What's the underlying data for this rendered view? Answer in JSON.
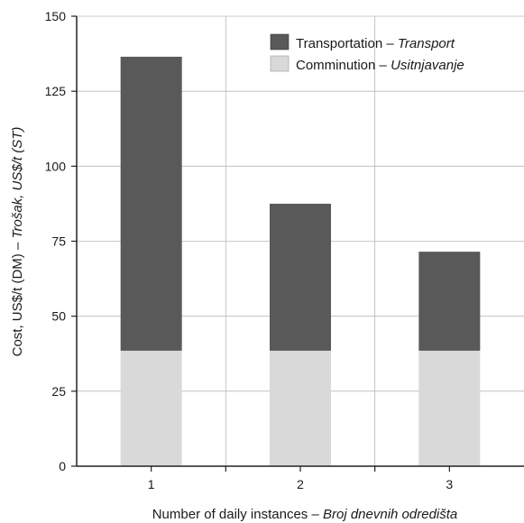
{
  "chart_data": {
    "type": "bar",
    "stacked": true,
    "categories": [
      "1",
      "2",
      "3"
    ],
    "series": [
      {
        "name": "Comminution",
        "name_italic": "Usitnjavanje",
        "values": [
          38.5,
          38.5,
          38.5
        ],
        "color": "#d9d9d9"
      },
      {
        "name": "Transportation",
        "name_italic": "Transport",
        "values": [
          98,
          49,
          33
        ],
        "color": "#595959"
      }
    ],
    "totals": [
      136.5,
      87.5,
      71.5
    ],
    "xlabel": "Number of daily instances",
    "xlabel_italic": "Broj dnevnih odredišta",
    "ylabel": "Cost, US$/t (DM)",
    "ylabel_italic": "Trošak,",
    "ylabel_tail": "US$/t (ST)",
    "dash": "–",
    "ylim": [
      0,
      150
    ],
    "yticks": [
      "0",
      "25",
      "50",
      "75",
      "100",
      "125",
      "150"
    ],
    "grid": true,
    "legend_position": "top-right"
  }
}
